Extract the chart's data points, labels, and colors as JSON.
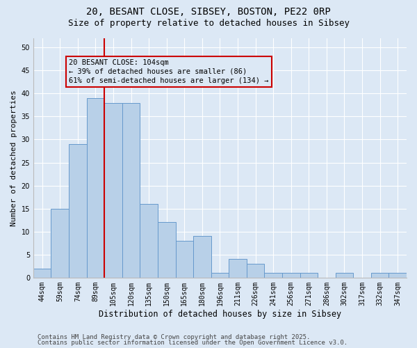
{
  "title_line1": "20, BESANT CLOSE, SIBSEY, BOSTON, PE22 0RP",
  "title_line2": "Size of property relative to detached houses in Sibsey",
  "xlabel": "Distribution of detached houses by size in Sibsey",
  "ylabel": "Number of detached properties",
  "categories": [
    "44sqm",
    "59sqm",
    "74sqm",
    "89sqm",
    "105sqm",
    "120sqm",
    "135sqm",
    "150sqm",
    "165sqm",
    "180sqm",
    "196sqm",
    "211sqm",
    "226sqm",
    "241sqm",
    "256sqm",
    "271sqm",
    "286sqm",
    "302sqm",
    "317sqm",
    "332sqm",
    "347sqm"
  ],
  "values": [
    2,
    15,
    29,
    39,
    38,
    38,
    16,
    12,
    8,
    9,
    1,
    4,
    3,
    1,
    1,
    1,
    0,
    1,
    0,
    1,
    1
  ],
  "bar_color": "#b8d0e8",
  "bar_edge_color": "#6699cc",
  "highlight_bar_index": 3,
  "highlight_color": "#cc0000",
  "annotation_text": "20 BESANT CLOSE: 104sqm\n← 39% of detached houses are smaller (86)\n61% of semi-detached houses are larger (134) →",
  "annotation_box_color": "#cc0000",
  "bg_color": "#dce8f5",
  "grid_color": "#ffffff",
  "ylim": [
    0,
    52
  ],
  "yticks": [
    0,
    5,
    10,
    15,
    20,
    25,
    30,
    35,
    40,
    45,
    50
  ],
  "footer_line1": "Contains HM Land Registry data © Crown copyright and database right 2025.",
  "footer_line2": "Contains public sector information licensed under the Open Government Licence v3.0.",
  "title_fontsize": 10,
  "subtitle_fontsize": 9,
  "tick_fontsize": 7,
  "xlabel_fontsize": 8.5,
  "ylabel_fontsize": 8,
  "annotation_fontsize": 7.5,
  "footer_fontsize": 6.5
}
